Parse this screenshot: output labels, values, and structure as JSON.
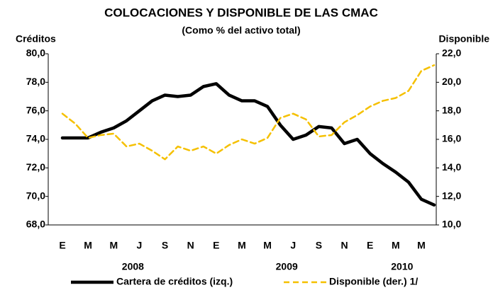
{
  "chart_data": {
    "type": "line",
    "title": "COLOCACIONES  Y DISPONIBLE DE LAS CMAC",
    "subtitle": "(Como % del activo total)",
    "y_label": "Créditos",
    "y2_label": "Disponible",
    "categories": [
      "E",
      null,
      "M",
      null,
      "M",
      null,
      "J",
      null,
      "S",
      null,
      "N",
      null,
      "E",
      null,
      "M",
      null,
      "M",
      null,
      "J",
      null,
      "S",
      null,
      "N",
      null,
      "E",
      null,
      "M",
      null,
      "M",
      null
    ],
    "x_groups": [
      {
        "label": "2008",
        "span": 12
      },
      {
        "label": "2009",
        "span": 12
      },
      {
        "label": "2010",
        "span": 6
      }
    ],
    "ylim": [
      68,
      80
    ],
    "yticks": [
      {
        "value": 68,
        "label": "68,0"
      },
      {
        "value": 70,
        "label": "70,0"
      },
      {
        "value": 72,
        "label": "72,0"
      },
      {
        "value": 74,
        "label": "74,0"
      },
      {
        "value": 76,
        "label": "76,0"
      },
      {
        "value": 78,
        "label": "78,0"
      },
      {
        "value": 80,
        "label": "80,0"
      }
    ],
    "y2lim": [
      10,
      22
    ],
    "y2ticks": [
      {
        "value": 10,
        "label": "10,0"
      },
      {
        "value": 12,
        "label": "12,0"
      },
      {
        "value": 14,
        "label": "14,0"
      },
      {
        "value": 16,
        "label": "16,0"
      },
      {
        "value": 18,
        "label": "18,0"
      },
      {
        "value": 20,
        "label": "20,0"
      },
      {
        "value": 22,
        "label": "22,0"
      }
    ],
    "series": [
      {
        "name": "Cartera de créditos (izq.)",
        "color": "#000000",
        "dash": false,
        "axis": "y",
        "values": [
          74.1,
          74.1,
          74.1,
          74.5,
          74.8,
          75.3,
          76.0,
          76.7,
          77.1,
          77.0,
          77.1,
          77.7,
          77.9,
          77.1,
          76.7,
          76.7,
          76.3,
          75.0,
          74.0,
          74.3,
          74.9,
          74.8,
          73.7,
          74.0,
          73.0,
          72.3,
          71.7,
          71.0,
          69.8,
          69.4
        ]
      },
      {
        "name": "Disponible (der.) 1/",
        "color": "#f5c000",
        "dash": true,
        "axis": "y2",
        "values": [
          17.8,
          17.1,
          16.1,
          16.3,
          16.4,
          15.5,
          15.7,
          15.2,
          14.6,
          15.5,
          15.2,
          15.5,
          15.0,
          15.6,
          16.0,
          15.7,
          16.1,
          17.5,
          17.8,
          17.4,
          16.2,
          16.3,
          17.2,
          17.7,
          18.3,
          18.7,
          18.9,
          19.4,
          20.8,
          21.2
        ]
      }
    ]
  }
}
